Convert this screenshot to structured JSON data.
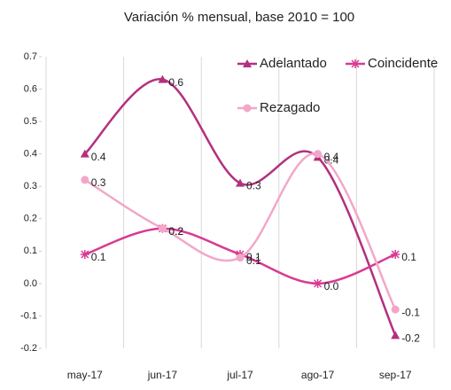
{
  "chart_data": {
    "type": "line",
    "title": "Variación % mensual, base 2010 = 100",
    "categories": [
      "may-17",
      "jun-17",
      "jul-17",
      "ago-17",
      "sep-17"
    ],
    "series": [
      {
        "name": "Adelantado",
        "color": "#b3307f",
        "marker": "triangle",
        "values": [
          0.4,
          0.63,
          0.31,
          0.39,
          -0.16
        ],
        "value_labels": [
          "0.4",
          "0.6",
          "0.3",
          "0.4",
          "-0.2"
        ]
      },
      {
        "name": "Coincidente",
        "color": "#d93a93",
        "marker": "asterisk",
        "values": [
          0.09,
          0.17,
          0.09,
          0.0,
          0.09
        ],
        "value_labels": [
          "0.1",
          "0.2",
          "0.1",
          "0.0",
          "0.1"
        ]
      },
      {
        "name": "Rezagado",
        "color": "#f2a7c9",
        "marker": "circle",
        "values": [
          0.32,
          0.17,
          0.08,
          0.4,
          -0.08
        ],
        "value_labels": [
          "0.3",
          "0.2",
          "0.1",
          "0.4",
          "-0.1"
        ]
      }
    ],
    "ylim": [
      -0.2,
      0.7
    ],
    "yticks": [
      -0.2,
      -0.1,
      {
        "value": 0,
        "label": "0.0"
      },
      0.1,
      0.2,
      0.3,
      0.4,
      0.5,
      0.6,
      0.7
    ],
    "smooth": true
  }
}
